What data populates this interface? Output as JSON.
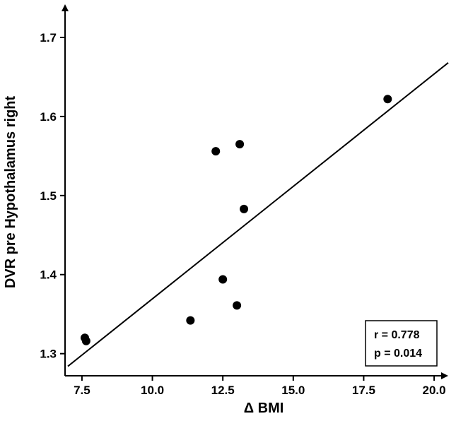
{
  "chart_data": {
    "type": "scatter",
    "title": "",
    "xlabel": "Δ BMI",
    "ylabel": "DVR pre Hypothalamus right",
    "xlim": [
      6.9,
      20.5
    ],
    "ylim": [
      1.272,
      1.742
    ],
    "xticks": [
      7.5,
      10.0,
      12.5,
      15.0,
      17.5,
      20.0
    ],
    "xtick_labels": [
      "7.5",
      "10.0",
      "12.5",
      "15.0",
      "17.5",
      "20.0"
    ],
    "yticks": [
      1.3,
      1.4,
      1.5,
      1.6,
      1.7
    ],
    "ytick_labels": [
      "1.3",
      "1.4",
      "1.5",
      "1.6",
      "1.7"
    ],
    "points": [
      {
        "x": 6.9,
        "y": 1.32
      },
      {
        "x": 7.65,
        "y": 1.316
      },
      {
        "x": 11.35,
        "y": 1.342
      },
      {
        "x": 12.25,
        "y": 1.556
      },
      {
        "x": 12.5,
        "y": 1.394
      },
      {
        "x": 13.0,
        "y": 1.361
      },
      {
        "x": 13.1,
        "y": 1.565
      },
      {
        "x": 13.25,
        "y": 1.483
      },
      {
        "x": 18.35,
        "y": 1.622
      }
    ],
    "regression_line": {
      "x1": 7.0,
      "y1": 1.284,
      "x2": 20.5,
      "y2": 1.668
    },
    "grid": false,
    "legend": "none",
    "annotations": [
      "r = 0.778",
      "p = 0.014"
    ]
  }
}
